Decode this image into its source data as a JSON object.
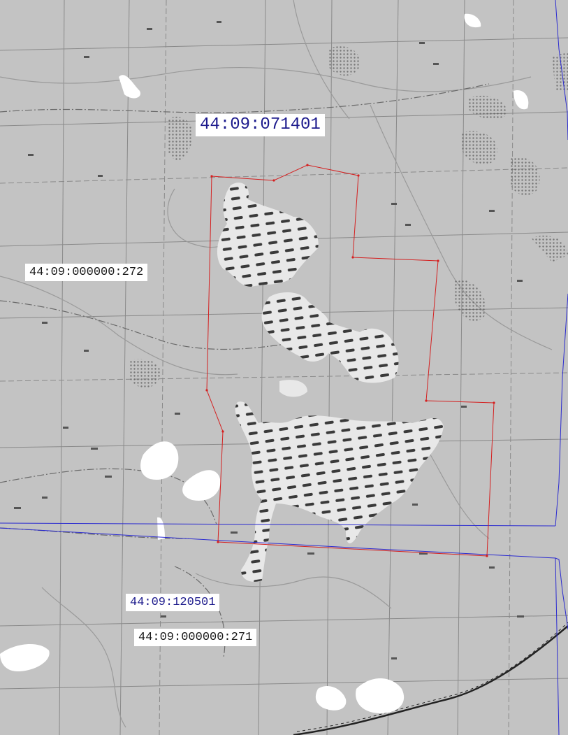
{
  "map": {
    "labels": {
      "block_north": "44:09:071401",
      "block_south": "44:09:120501",
      "parcel_west": "44:09:000000:272",
      "parcel_south": "44:09:000000:271"
    },
    "colors": {
      "background": "#c3c3c3",
      "parcel_boundary": "#d42020",
      "block_boundary": "#2a2ad0",
      "swamp_fill": "#e8e8e8",
      "swamp_hatch": "#3a3a3a",
      "open_area": "#ffffff",
      "grid_line": "#8a8a8a",
      "road": "#6a6a6a",
      "river": "#9a9a9a",
      "railway": "#222222"
    }
  }
}
